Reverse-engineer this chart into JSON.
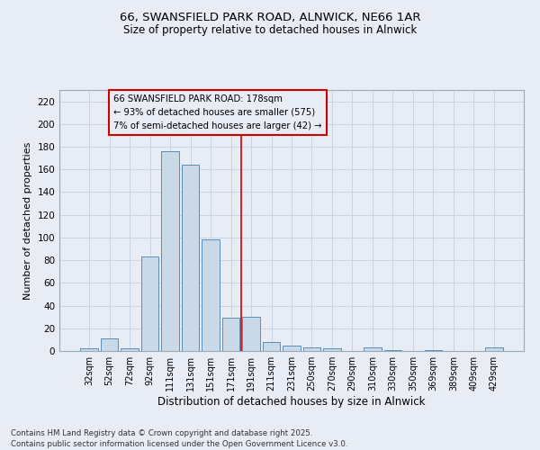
{
  "title1": "66, SWANSFIELD PARK ROAD, ALNWICK, NE66 1AR",
  "title2": "Size of property relative to detached houses in Alnwick",
  "xlabel": "Distribution of detached houses by size in Alnwick",
  "ylabel": "Number of detached properties",
  "categories": [
    "32sqm",
    "52sqm",
    "72sqm",
    "92sqm",
    "111sqm",
    "131sqm",
    "151sqm",
    "171sqm",
    "191sqm",
    "211sqm",
    "231sqm",
    "250sqm",
    "270sqm",
    "290sqm",
    "310sqm",
    "330sqm",
    "350sqm",
    "369sqm",
    "389sqm",
    "409sqm",
    "429sqm"
  ],
  "values": [
    2,
    11,
    2,
    83,
    176,
    164,
    98,
    29,
    30,
    8,
    5,
    3,
    2,
    0,
    3,
    1,
    0,
    1,
    0,
    0,
    3
  ],
  "bar_color": "#c9d9e8",
  "bar_edge_color": "#5b8db8",
  "grid_color": "#c8d4e4",
  "bg_color": "#e8edf5",
  "annotation_text": "66 SWANSFIELD PARK ROAD: 178sqm\n← 93% of detached houses are smaller (575)\n7% of semi-detached houses are larger (42) →",
  "vline_position": 7.5,
  "annotation_box_color": "#cc0000",
  "footer_text": "Contains HM Land Registry data © Crown copyright and database right 2025.\nContains public sector information licensed under the Open Government Licence v3.0.",
  "ylim": [
    0,
    230
  ],
  "yticks": [
    0,
    20,
    40,
    60,
    80,
    100,
    120,
    140,
    160,
    180,
    200,
    220
  ]
}
